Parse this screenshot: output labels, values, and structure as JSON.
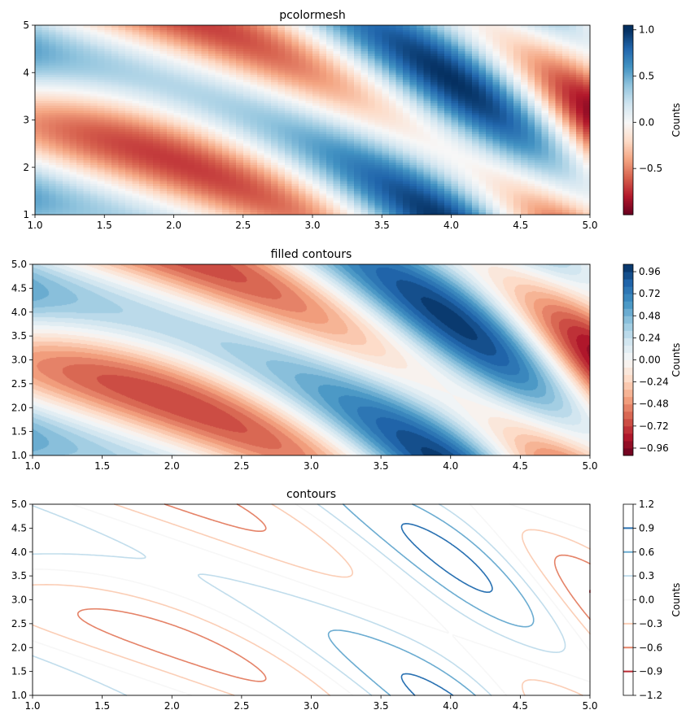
{
  "chart_data": [
    {
      "type": "heatmap",
      "title": "pcolormesh",
      "field": "sin(x^2/2 + y - x) * sin(x + y)",
      "xlim": [
        1.0,
        5.0
      ],
      "ylim": [
        1,
        5
      ],
      "x_ticks": [
        1.0,
        1.5,
        2.0,
        2.5,
        3.0,
        3.5,
        4.0,
        4.5,
        5.0
      ],
      "x_tick_labels": [
        "1.0",
        "1.5",
        "2.0",
        "2.5",
        "3.0",
        "3.5",
        "4.0",
        "4.5",
        "5.0"
      ],
      "y_ticks": [
        1,
        2,
        3,
        4,
        5
      ],
      "y_tick_labels": [
        "1",
        "2",
        "3",
        "4",
        "5"
      ],
      "grid": false,
      "colormap": "RdBu",
      "colorbar": {
        "label": "Counts",
        "range": [
          -1.0,
          1.05
        ],
        "ticks": [
          -0.5,
          0.0,
          0.5,
          1.0
        ],
        "tick_labels": [
          "−0.5",
          "0.0",
          "0.5",
          "1.0"
        ]
      }
    },
    {
      "type": "heatmap",
      "title": "filled contours",
      "field": "sin(x^2/2 + y - x) * sin(x + y)",
      "xlim": [
        1.0,
        5.0
      ],
      "ylim": [
        1.0,
        5.0
      ],
      "x_ticks": [
        1.0,
        1.5,
        2.0,
        2.5,
        3.0,
        3.5,
        4.0,
        4.5,
        5.0
      ],
      "x_tick_labels": [
        "1.0",
        "1.5",
        "2.0",
        "2.5",
        "3.0",
        "3.5",
        "4.0",
        "4.5",
        "5.0"
      ],
      "y_ticks": [
        1.0,
        1.5,
        2.0,
        2.5,
        3.0,
        3.5,
        4.0,
        4.5,
        5.0
      ],
      "y_tick_labels": [
        "1.0",
        "1.5",
        "2.0",
        "2.5",
        "3.0",
        "3.5",
        "4.0",
        "4.5",
        "5.0"
      ],
      "grid": false,
      "colormap": "RdBu",
      "levels": {
        "min": -1.04,
        "max": 1.04,
        "step": 0.08
      },
      "colorbar": {
        "label": "Counts",
        "range": [
          -1.04,
          1.04
        ],
        "ticks": [
          -0.96,
          -0.72,
          -0.48,
          -0.24,
          0.0,
          0.24,
          0.48,
          0.72,
          0.96
        ],
        "tick_labels": [
          "−0.96",
          "−0.72",
          "−0.48",
          "−0.24",
          "0.00",
          "0.24",
          "0.48",
          "0.72",
          "0.96"
        ]
      }
    },
    {
      "type": "line",
      "title": "contours",
      "field": "sin(x^2/2 + y - x) * sin(x + y)",
      "xlim": [
        1.0,
        5.0
      ],
      "ylim": [
        1.0,
        5.0
      ],
      "x_ticks": [
        1.0,
        1.5,
        2.0,
        2.5,
        3.0,
        3.5,
        4.0,
        4.5,
        5.0
      ],
      "x_tick_labels": [
        "1.0",
        "1.5",
        "2.0",
        "2.5",
        "3.0",
        "3.5",
        "4.0",
        "4.5",
        "5.0"
      ],
      "y_ticks": [
        1.0,
        1.5,
        2.0,
        2.5,
        3.0,
        3.5,
        4.0,
        4.5,
        5.0
      ],
      "y_tick_labels": [
        "1.0",
        "1.5",
        "2.0",
        "2.5",
        "3.0",
        "3.5",
        "4.0",
        "4.5",
        "5.0"
      ],
      "grid": false,
      "colormap": "RdBu",
      "contour_levels": [
        -0.9,
        -0.6,
        -0.3,
        0.0,
        0.3,
        0.6,
        0.9
      ],
      "colorbar": {
        "label": "Counts",
        "range": [
          -1.2,
          1.2
        ],
        "ticks": [
          -1.2,
          -0.9,
          -0.6,
          -0.3,
          0.0,
          0.3,
          0.6,
          0.9,
          1.2
        ],
        "tick_labels": [
          "−1.2",
          "−0.9",
          "−0.6",
          "−0.3",
          "0.0",
          "0.3",
          "0.6",
          "0.9",
          "1.2"
        ]
      }
    }
  ]
}
